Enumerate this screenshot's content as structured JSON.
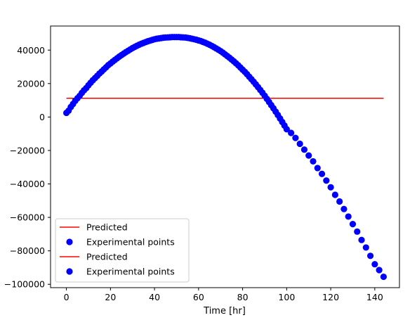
{
  "chart_data": {
    "type": "scatter",
    "xlabel": "Time [hr]",
    "ylabel": "",
    "xlim": [
      -7.2,
      151.2
    ],
    "ylim": [
      -102000,
      54400
    ],
    "x_ticks": [
      0,
      20,
      40,
      60,
      80,
      100,
      120,
      140
    ],
    "x_tick_labels": [
      "0",
      "20",
      "40",
      "60",
      "80",
      "100",
      "120",
      "140"
    ],
    "y_ticks": [
      -100000,
      -80000,
      -60000,
      -40000,
      -20000,
      0,
      20000,
      40000
    ],
    "y_tick_labels": [
      "−100000",
      "−80000",
      "−60000",
      "−40000",
      "−20000",
      "0",
      "20000",
      "40000"
    ],
    "grid": false,
    "legend_position": "lower-left",
    "legend": [
      {
        "label": "Predicted",
        "kind": "line",
        "color": "#ff0000"
      },
      {
        "label": "Experimental points",
        "kind": "marker",
        "color": "#0000ff"
      },
      {
        "label": "Predicted",
        "kind": "line",
        "color": "#ff0000"
      },
      {
        "label": "Experimental points",
        "kind": "marker",
        "color": "#0000ff"
      }
    ],
    "predicted_line": {
      "x": [
        0,
        144
      ],
      "y": [
        11200,
        11200
      ],
      "color": "#ff0000"
    },
    "experimental_points": {
      "color": "#0000ff",
      "points": [
        [
          0,
          2500
        ],
        [
          1,
          3800
        ],
        [
          2,
          6000
        ],
        [
          3,
          7800
        ],
        [
          4,
          9700
        ],
        [
          5,
          11200
        ],
        [
          6,
          12600
        ],
        [
          7,
          14400
        ],
        [
          8,
          16000
        ],
        [
          9,
          17300
        ],
        [
          10,
          19000
        ],
        [
          11,
          20500
        ],
        [
          12,
          22000
        ],
        [
          13,
          23300
        ],
        [
          14,
          24600
        ],
        [
          15,
          26000
        ],
        [
          16,
          27200
        ],
        [
          17,
          28500
        ],
        [
          18,
          29700
        ],
        [
          19,
          31000
        ],
        [
          20,
          32000
        ],
        [
          21,
          33100
        ],
        [
          22,
          34100
        ],
        [
          23,
          35100
        ],
        [
          24,
          36100
        ],
        [
          25,
          37000
        ],
        [
          26,
          37900
        ],
        [
          27,
          38800
        ],
        [
          28,
          39600
        ],
        [
          29,
          40400
        ],
        [
          30,
          41200
        ],
        [
          31,
          41900
        ],
        [
          32,
          42600
        ],
        [
          33,
          43200
        ],
        [
          34,
          43800
        ],
        [
          35,
          44300
        ],
        [
          36,
          44800
        ],
        [
          37,
          45300
        ],
        [
          38,
          45700
        ],
        [
          39,
          46100
        ],
        [
          40,
          46500
        ],
        [
          41,
          46800
        ],
        [
          42,
          47000
        ],
        [
          43,
          47200
        ],
        [
          44,
          47400
        ],
        [
          45,
          47500
        ],
        [
          46,
          47600
        ],
        [
          47,
          47700
        ],
        [
          48,
          47800
        ],
        [
          49,
          47800
        ],
        [
          50,
          47800
        ],
        [
          51,
          47800
        ],
        [
          52,
          47700
        ],
        [
          53,
          47600
        ],
        [
          54,
          47500
        ],
        [
          55,
          47300
        ],
        [
          56,
          47100
        ],
        [
          57,
          46800
        ],
        [
          58,
          46500
        ],
        [
          59,
          46200
        ],
        [
          60,
          45800
        ],
        [
          61,
          45400
        ],
        [
          62,
          44900
        ],
        [
          63,
          44400
        ],
        [
          64,
          43800
        ],
        [
          65,
          43200
        ],
        [
          66,
          42500
        ],
        [
          67,
          41800
        ],
        [
          68,
          41000
        ],
        [
          69,
          40200
        ],
        [
          70,
          39400
        ],
        [
          71,
          38500
        ],
        [
          72,
          37500
        ],
        [
          73,
          36500
        ],
        [
          74,
          35500
        ],
        [
          75,
          34400
        ],
        [
          76,
          33300
        ],
        [
          77,
          32100
        ],
        [
          78,
          30900
        ],
        [
          79,
          29600
        ],
        [
          80,
          28300
        ],
        [
          81,
          27000
        ],
        [
          82,
          25600
        ],
        [
          83,
          24100
        ],
        [
          84,
          22600
        ],
        [
          85,
          21100
        ],
        [
          86,
          19500
        ],
        [
          87,
          17900
        ],
        [
          88,
          16200
        ],
        [
          89,
          14500
        ],
        [
          90,
          12700
        ],
        [
          91,
          10900
        ],
        [
          92,
          9000
        ],
        [
          93,
          7100
        ],
        [
          94,
          5200
        ],
        [
          95,
          3200
        ],
        [
          96,
          1200
        ],
        [
          97,
          -900
        ],
        [
          98,
          -3000
        ],
        [
          99,
          -5100
        ],
        [
          100,
          -7300
        ],
        [
          102,
          -9500
        ],
        [
          104,
          -12500
        ],
        [
          106,
          -16000
        ],
        [
          108,
          -19500
        ],
        [
          110,
          -23000
        ],
        [
          112,
          -26500
        ],
        [
          114,
          -30500
        ],
        [
          116,
          -34000
        ],
        [
          118,
          -38000
        ],
        [
          120,
          -42000
        ],
        [
          122,
          -46500
        ],
        [
          124,
          -50500
        ],
        [
          126,
          -55000
        ],
        [
          128,
          -59500
        ],
        [
          130,
          -64000
        ],
        [
          132,
          -68500
        ],
        [
          134,
          -73500
        ],
        [
          136,
          -78000
        ],
        [
          138,
          -83000
        ],
        [
          140,
          -88000
        ],
        [
          142,
          -91500
        ],
        [
          144,
          -95500
        ]
      ]
    }
  }
}
